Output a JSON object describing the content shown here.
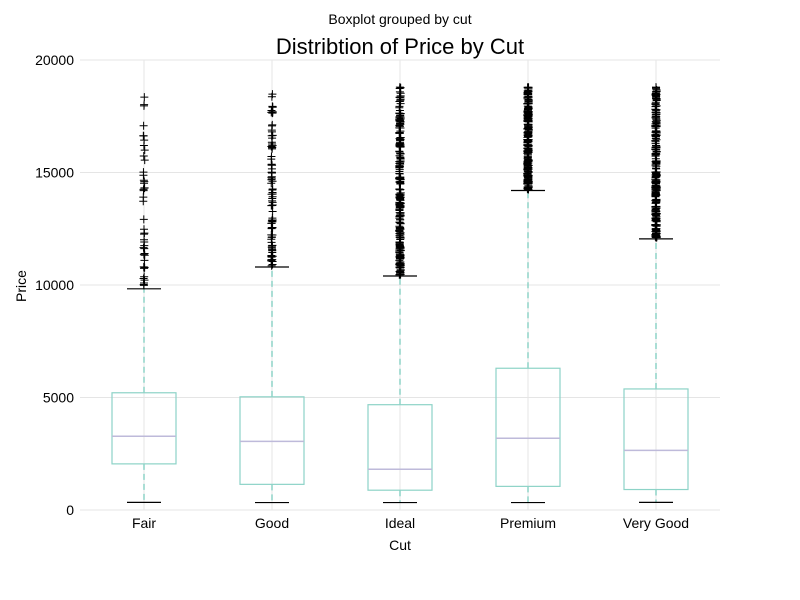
{
  "chart_data": {
    "type": "boxplot",
    "suptitle": "Boxplot grouped by cut",
    "title": "Distribtion of Price by Cut",
    "xlabel": "Cut",
    "ylabel": "Price",
    "ylim": [
      0,
      20000
    ],
    "yticks": [
      0,
      5000,
      10000,
      15000,
      20000
    ],
    "ytick_labels": [
      "0",
      "5000",
      "10000",
      "15000",
      "20000"
    ],
    "grid": true,
    "colors": {
      "box": "#8dd3c7",
      "median": "#bebada",
      "whisker": "#8dd3c7",
      "cap": "#000000",
      "flier": "#000000",
      "grid": "#e5e5e5"
    },
    "categories": [
      "Fair",
      "Good",
      "Ideal",
      "Premium",
      "Very Good"
    ],
    "boxes": [
      {
        "category": "Fair",
        "whislo": 340,
        "q1": 2050,
        "median": 3280,
        "q3": 5210,
        "whishi": 9830,
        "fliers_min": 9900,
        "fliers_max": 18580,
        "flier_density": "sparse"
      },
      {
        "category": "Good",
        "whislo": 330,
        "q1": 1140,
        "median": 3050,
        "q3": 5030,
        "whishi": 10800,
        "fliers_min": 10850,
        "fliers_max": 18780,
        "flier_density": "medium"
      },
      {
        "category": "Ideal",
        "whislo": 330,
        "q1": 880,
        "median": 1810,
        "q3": 4680,
        "whishi": 10400,
        "fliers_min": 10450,
        "fliers_max": 18810,
        "flier_density": "dense"
      },
      {
        "category": "Premium",
        "whislo": 330,
        "q1": 1050,
        "median": 3190,
        "q3": 6300,
        "whishi": 14200,
        "fliers_min": 14250,
        "fliers_max": 18820,
        "flier_density": "dense"
      },
      {
        "category": "Very Good",
        "whislo": 340,
        "q1": 910,
        "median": 2650,
        "q3": 5380,
        "whishi": 12050,
        "fliers_min": 12100,
        "fliers_max": 18820,
        "flier_density": "dense"
      }
    ]
  }
}
